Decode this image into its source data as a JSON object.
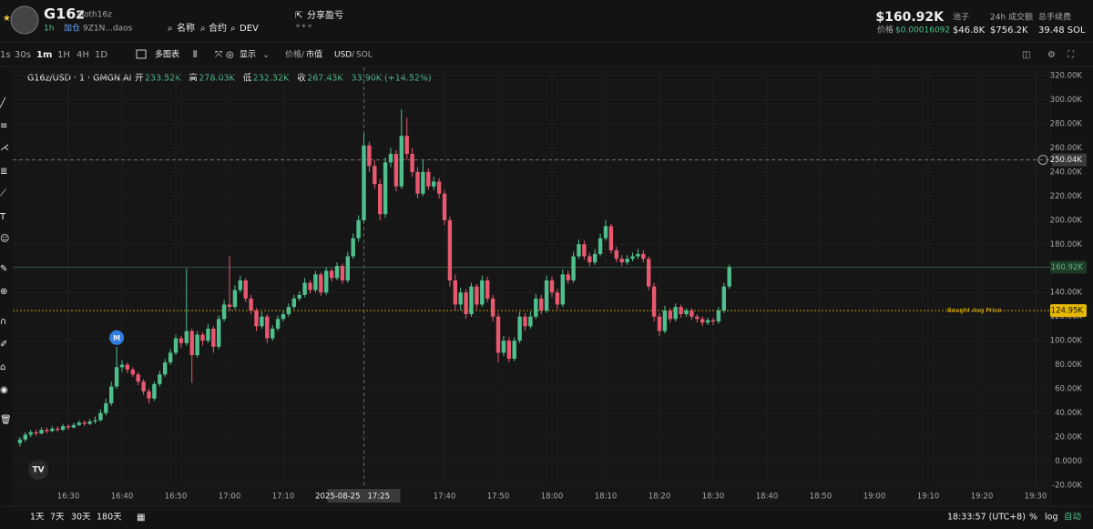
{
  "header": {
    "symbol": "G16z",
    "handle": "Goth16z",
    "age": "1h",
    "add": "加仓",
    "address": "9Z1N...daos",
    "links": [
      "名称",
      "合约",
      "DEV"
    ],
    "share": "分享盈亏",
    "market_cap": "$160.92K",
    "price_label": "价格",
    "price": "$0.00016092",
    "stats": [
      {
        "label": "池子",
        "value": "$46.8K"
      },
      {
        "label": "24h 成交额",
        "value": "$756.2K"
      },
      {
        "label": "总手续费",
        "value": "39.48 SOL"
      }
    ]
  },
  "toolbar": {
    "intervals": [
      "1s",
      "30s",
      "1m",
      "1H",
      "4H",
      "1D"
    ],
    "multi": "多图表",
    "display": "显示",
    "price_toggle": [
      "价格",
      "市值"
    ],
    "currency_toggle": [
      "USD",
      "SOL"
    ]
  },
  "footer": {
    "ranges": [
      "1天",
      "7天",
      "30天",
      "180天"
    ],
    "clock": "18:33:57 (UTC+8)",
    "options": [
      "%",
      "log",
      "自动"
    ]
  },
  "chart_data": {
    "type": "candlestick",
    "title": "G16z/USD · 1 · GMGN.AI",
    "ohlc_legend": [
      {
        "label": "开",
        "value": "233.52K"
      },
      {
        "label": "高",
        "value": "278.03K"
      },
      {
        "label": "低",
        "value": "232.32K"
      },
      {
        "label": "收",
        "value": "267.43K"
      }
    ],
    "change": "33.90K (+14.52%)",
    "up_color": "#4fc08d",
    "down_color": "#e8586f",
    "ylim": [
      -20,
      320
    ],
    "yticks": [
      {
        "value": 320,
        "label": "320.00K"
      },
      {
        "value": 300,
        "label": "300.00K"
      },
      {
        "value": 280,
        "label": "280.00K"
      },
      {
        "value": 260,
        "label": "260.00K"
      },
      {
        "value": 240,
        "label": "240.00K"
      },
      {
        "value": 220,
        "label": "220.00K"
      },
      {
        "value": 200,
        "label": "200.00K"
      },
      {
        "value": 180,
        "label": "180.00K"
      },
      {
        "value": 160,
        "label": "160.00K"
      },
      {
        "value": 140,
        "label": "140.00K"
      },
      {
        "value": 120,
        "label": "120.00K"
      },
      {
        "value": 100,
        "label": "100.00K"
      },
      {
        "value": 80,
        "label": "80.00K"
      },
      {
        "value": 60,
        "label": "60.00K"
      },
      {
        "value": 40,
        "label": "40.00K"
      },
      {
        "value": 20,
        "label": "20.00K"
      },
      {
        "value": 0,
        "label": "0.0000"
      },
      {
        "value": -20,
        "label": "-20.00K"
      }
    ],
    "xticks": [
      "16:30",
      "16:40",
      "16:50",
      "17:00",
      "17:10",
      "17:40",
      "17:50",
      "18:00",
      "18:10",
      "18:20",
      "18:30",
      "18:40",
      "18:50",
      "19:00",
      "19:10",
      "19:20",
      "19:30"
    ],
    "crosshair": {
      "date": "2025-08-25",
      "time": "17:25",
      "value": 250.04,
      "label": "250.04K"
    },
    "price_lines": [
      {
        "value": 160.92,
        "label": "160.92K",
        "color": "#5dbb7a"
      },
      {
        "value": 124.95,
        "label": "124.95K",
        "name": "Bought Avg Price",
        "color": "#e6b800"
      }
    ],
    "marker": {
      "text": "M",
      "x": "16:39"
    },
    "x": [
      "16:21",
      "16:22",
      "16:23",
      "16:24",
      "16:25",
      "16:26",
      "16:27",
      "16:28",
      "16:29",
      "16:30",
      "16:31",
      "16:32",
      "16:33",
      "16:34",
      "16:35",
      "16:36",
      "16:37",
      "16:38",
      "16:39",
      "16:40",
      "16:41",
      "16:42",
      "16:43",
      "16:44",
      "16:45",
      "16:46",
      "16:47",
      "16:48",
      "16:49",
      "16:50",
      "16:51",
      "16:52",
      "16:53",
      "16:54",
      "16:55",
      "16:56",
      "16:57",
      "16:58",
      "16:59",
      "17:00",
      "17:01",
      "17:02",
      "17:03",
      "17:04",
      "17:05",
      "17:06",
      "17:07",
      "17:08",
      "17:09",
      "17:10",
      "17:11",
      "17:12",
      "17:13",
      "17:14",
      "17:15",
      "17:16",
      "17:17",
      "17:18",
      "17:19",
      "17:20",
      "17:21",
      "17:22",
      "17:23",
      "17:24",
      "17:25",
      "17:26",
      "17:27",
      "17:28",
      "17:29",
      "17:30",
      "17:31",
      "17:32",
      "17:33",
      "17:34",
      "17:35",
      "17:36",
      "17:37",
      "17:38",
      "17:39",
      "17:40",
      "17:41",
      "17:42",
      "17:43",
      "17:44",
      "17:45",
      "17:46",
      "17:47",
      "17:48",
      "17:49",
      "17:50",
      "17:51",
      "17:52",
      "17:53",
      "17:54",
      "17:55",
      "17:56",
      "17:57",
      "17:58",
      "17:59",
      "18:00",
      "18:01",
      "18:02",
      "18:03",
      "18:04",
      "18:05",
      "18:06",
      "18:07",
      "18:08",
      "18:09",
      "18:10",
      "18:11",
      "18:12",
      "18:13",
      "18:14",
      "18:15",
      "18:16",
      "18:17",
      "18:18",
      "18:19",
      "18:20",
      "18:21",
      "18:22",
      "18:23",
      "18:24",
      "18:25",
      "18:26",
      "18:27",
      "18:28",
      "18:29",
      "18:30",
      "18:31",
      "18:32",
      "18:33"
    ],
    "candles": [
      [
        15,
        20,
        12,
        18
      ],
      [
        18,
        24,
        16,
        22
      ],
      [
        22,
        26,
        20,
        24
      ],
      [
        24,
        26,
        21,
        23
      ],
      [
        23,
        28,
        22,
        26
      ],
      [
        26,
        28,
        23,
        25
      ],
      [
        25,
        29,
        24,
        27
      ],
      [
        27,
        29,
        24,
        26
      ],
      [
        26,
        31,
        25,
        29
      ],
      [
        29,
        31,
        26,
        28
      ],
      [
        28,
        32,
        27,
        30
      ],
      [
        30,
        34,
        29,
        32
      ],
      [
        32,
        34,
        29,
        31
      ],
      [
        31,
        35,
        30,
        33
      ],
      [
        33,
        37,
        31,
        34
      ],
      [
        34,
        43,
        33,
        40
      ],
      [
        40,
        52,
        38,
        48
      ],
      [
        48,
        66,
        46,
        62
      ],
      [
        62,
        95,
        60,
        78
      ],
      [
        78,
        84,
        74,
        80
      ],
      [
        80,
        82,
        73,
        76
      ],
      [
        76,
        78,
        70,
        72
      ],
      [
        72,
        74,
        63,
        66
      ],
      [
        66,
        68,
        55,
        58
      ],
      [
        58,
        60,
        48,
        52
      ],
      [
        52,
        66,
        50,
        64
      ],
      [
        64,
        75,
        62,
        72
      ],
      [
        72,
        85,
        70,
        82
      ],
      [
        82,
        93,
        80,
        90
      ],
      [
        90,
        105,
        88,
        102
      ],
      [
        102,
        104,
        94,
        98
      ],
      [
        98,
        160,
        96,
        108
      ],
      [
        108,
        110,
        65,
        88
      ],
      [
        88,
        108,
        86,
        105
      ],
      [
        105,
        107,
        96,
        100
      ],
      [
        100,
        114,
        98,
        110
      ],
      [
        110,
        112,
        90,
        95
      ],
      [
        95,
        121,
        93,
        118
      ],
      [
        118,
        134,
        116,
        130
      ],
      [
        130,
        170,
        125,
        128
      ],
      [
        128,
        146,
        126,
        142
      ],
      [
        142,
        154,
        140,
        150
      ],
      [
        150,
        152,
        132,
        135
      ],
      [
        135,
        138,
        122,
        125
      ],
      [
        125,
        127,
        108,
        112
      ],
      [
        112,
        124,
        110,
        120
      ],
      [
        120,
        122,
        98,
        102
      ],
      [
        102,
        113,
        100,
        110
      ],
      [
        110,
        121,
        108,
        118
      ],
      [
        118,
        125,
        116,
        122
      ],
      [
        122,
        131,
        120,
        128
      ],
      [
        128,
        138,
        126,
        135
      ],
      [
        135,
        141,
        133,
        138
      ],
      [
        138,
        152,
        136,
        148
      ],
      [
        148,
        150,
        139,
        142
      ],
      [
        142,
        158,
        140,
        155
      ],
      [
        155,
        157,
        137,
        140
      ],
      [
        140,
        161,
        138,
        158
      ],
      [
        158,
        160,
        149,
        152
      ],
      [
        152,
        165,
        150,
        162
      ],
      [
        162,
        164,
        147,
        150
      ],
      [
        150,
        174,
        148,
        170
      ],
      [
        170,
        189,
        168,
        185
      ],
      [
        185,
        204,
        182,
        200
      ],
      [
        200,
        272,
        198,
        262
      ],
      [
        262,
        265,
        240,
        245
      ],
      [
        245,
        250,
        226,
        230
      ],
      [
        230,
        234,
        200,
        205
      ],
      [
        205,
        252,
        202,
        248
      ],
      [
        248,
        260,
        244,
        255
      ],
      [
        255,
        258,
        224,
        228
      ],
      [
        228,
        292,
        226,
        270
      ],
      [
        270,
        285,
        250,
        255
      ],
      [
        255,
        260,
        236,
        240
      ],
      [
        240,
        244,
        218,
        222
      ],
      [
        222,
        250,
        220,
        240
      ],
      [
        240,
        243,
        225,
        228
      ],
      [
        228,
        236,
        225,
        232
      ],
      [
        232,
        235,
        218,
        222
      ],
      [
        222,
        225,
        196,
        200
      ],
      [
        200,
        203,
        145,
        150
      ],
      [
        150,
        155,
        125,
        130
      ],
      [
        130,
        144,
        125,
        140
      ],
      [
        140,
        143,
        118,
        122
      ],
      [
        122,
        148,
        120,
        145
      ],
      [
        145,
        147,
        126,
        130
      ],
      [
        130,
        154,
        128,
        150
      ],
      [
        150,
        153,
        132,
        135
      ],
      [
        135,
        138,
        116,
        120
      ],
      [
        120,
        123,
        82,
        90
      ],
      [
        90,
        104,
        87,
        100
      ],
      [
        100,
        103,
        82,
        85
      ],
      [
        85,
        103,
        83,
        100
      ],
      [
        100,
        124,
        98,
        120
      ],
      [
        120,
        123,
        108,
        112
      ],
      [
        112,
        124,
        110,
        120
      ],
      [
        120,
        139,
        118,
        135
      ],
      [
        135,
        138,
        122,
        125
      ],
      [
        125,
        154,
        123,
        150
      ],
      [
        150,
        153,
        136,
        140
      ],
      [
        140,
        143,
        126,
        130
      ],
      [
        130,
        159,
        128,
        155
      ],
      [
        155,
        158,
        147,
        150
      ],
      [
        150,
        174,
        148,
        170
      ],
      [
        170,
        184,
        168,
        180
      ],
      [
        180,
        183,
        167,
        170
      ],
      [
        170,
        173,
        162,
        165
      ],
      [
        165,
        176,
        163,
        172
      ],
      [
        172,
        189,
        170,
        185
      ],
      [
        185,
        200,
        183,
        195
      ],
      [
        195,
        197,
        172,
        175
      ],
      [
        175,
        178,
        165,
        168
      ],
      [
        168,
        171,
        162,
        165
      ],
      [
        165,
        171,
        163,
        168
      ],
      [
        168,
        173,
        166,
        170
      ],
      [
        170,
        176,
        168,
        172
      ],
      [
        172,
        175,
        165,
        168
      ],
      [
        168,
        170,
        142,
        145
      ],
      [
        145,
        148,
        116,
        120
      ],
      [
        120,
        123,
        104,
        108
      ],
      [
        108,
        129,
        106,
        125
      ],
      [
        125,
        127,
        115,
        118
      ],
      [
        118,
        131,
        116,
        128
      ],
      [
        128,
        130,
        119,
        122
      ],
      [
        122,
        127,
        120,
        125
      ],
      [
        125,
        127,
        117,
        120
      ],
      [
        120,
        122,
        115,
        118
      ],
      [
        118,
        120,
        112,
        115
      ],
      [
        115,
        119,
        113,
        117
      ],
      [
        117,
        119,
        113,
        116
      ],
      [
        116,
        128,
        114,
        125
      ],
      [
        125,
        148,
        123,
        145
      ],
      [
        145,
        163,
        143,
        161
      ]
    ]
  }
}
